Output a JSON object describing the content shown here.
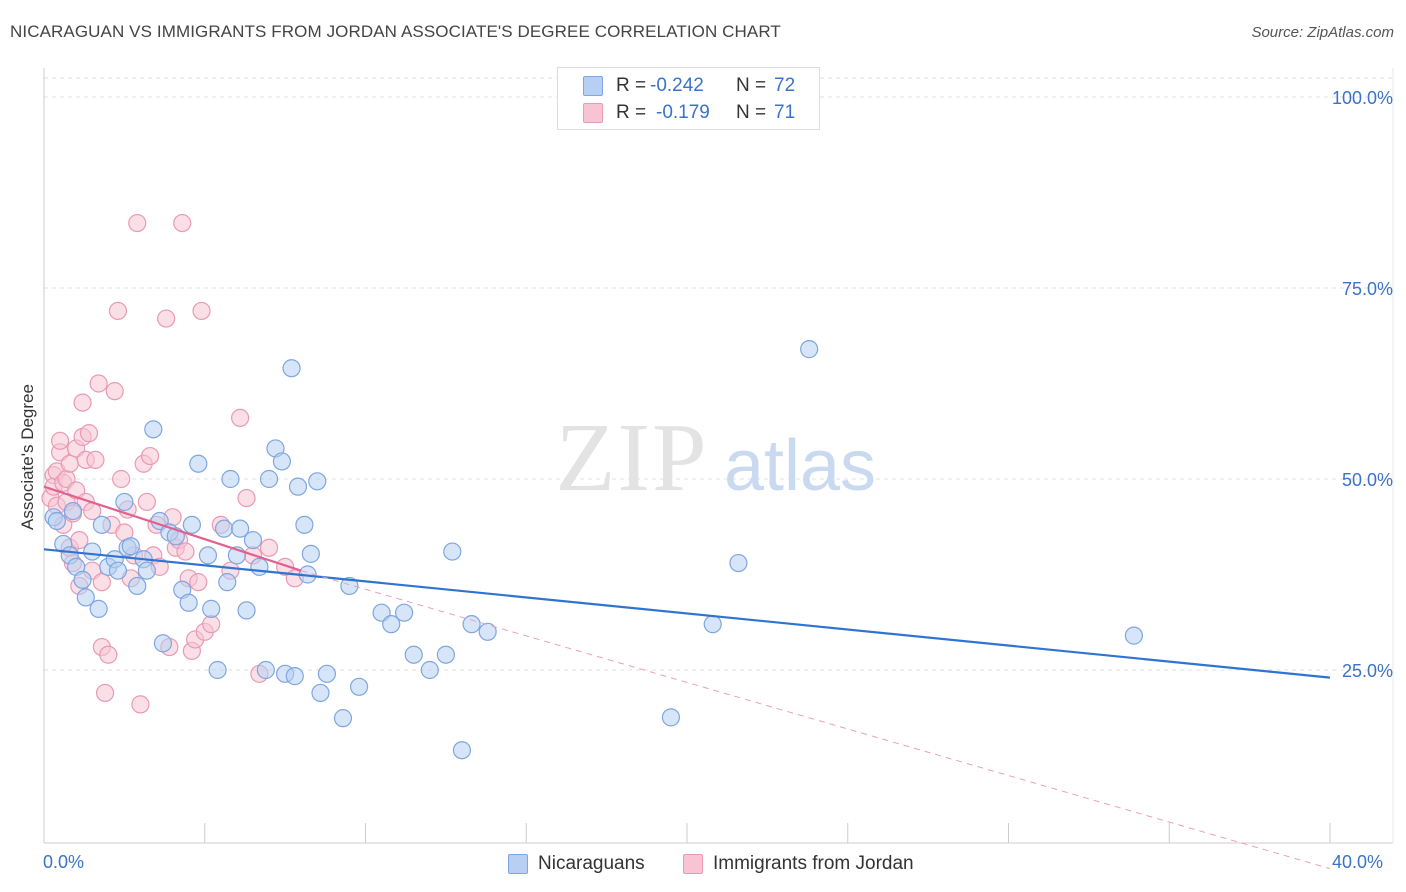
{
  "title": "NICARAGUAN VS IMMIGRANTS FROM JORDAN ASSOCIATE'S DEGREE CORRELATION CHART",
  "source": "Source: ZipAtlas.com",
  "watermark": {
    "zip": "ZIP",
    "atlas": "atlas"
  },
  "legend_top": {
    "rows": [
      {
        "r_label": "R =",
        "r_value": "-0.242",
        "n_label": "N =",
        "n_value": "72"
      },
      {
        "r_label": "R =",
        "r_value": "-0.179",
        "n_label": "N =",
        "n_value": "71"
      }
    ]
  },
  "legend_bottom": {
    "series1": "Nicaraguans",
    "series2": "Immigrants from Jordan"
  },
  "axis": {
    "ylabel": "Associate's Degree",
    "x_min_label": "0.0%",
    "x_max_label": "40.0%"
  },
  "chart_data": {
    "type": "scatter",
    "title": "NICARAGUAN VS IMMIGRANTS FROM JORDAN ASSOCIATE'S DEGREE CORRELATION CHART",
    "xlabel": "",
    "ylabel": "Associate's Degree",
    "xlim": [
      0,
      40
    ],
    "ylim": [
      0,
      102
    ],
    "y_ticks": [
      25,
      50,
      75,
      100
    ],
    "y_tick_labels": [
      "25.0%",
      "50.0%",
      "75.0%",
      "100.0%"
    ],
    "x_tick_labels": [
      "0.0%",
      "40.0%"
    ],
    "grid": true,
    "colors": {
      "series1": "#2f74d0",
      "series1_fill": "#b6cff3",
      "series2": "#e0608f",
      "series2_fill": "#f8c4d4",
      "tick_text": "#3b73c8"
    },
    "series": [
      {
        "name": "Nicaraguans",
        "R": -0.242,
        "N": 72,
        "trend": {
          "x": [
            0,
            40
          ],
          "y": [
            40.8,
            24.0
          ],
          "style": "solid"
        },
        "points": [
          [
            0.3,
            45.0
          ],
          [
            0.4,
            44.5
          ],
          [
            0.6,
            41.5
          ],
          [
            0.8,
            40.0
          ],
          [
            0.9,
            45.8
          ],
          [
            1.0,
            38.5
          ],
          [
            1.2,
            36.8
          ],
          [
            1.3,
            34.5
          ],
          [
            1.5,
            40.5
          ],
          [
            1.7,
            33.0
          ],
          [
            1.8,
            44.0
          ],
          [
            2.0,
            38.5
          ],
          [
            2.2,
            39.5
          ],
          [
            2.3,
            38.0
          ],
          [
            2.5,
            47.0
          ],
          [
            2.6,
            41.0
          ],
          [
            2.7,
            41.2
          ],
          [
            2.9,
            36.0
          ],
          [
            3.1,
            39.5
          ],
          [
            3.2,
            38.0
          ],
          [
            3.4,
            56.5
          ],
          [
            3.6,
            44.5
          ],
          [
            3.7,
            28.5
          ],
          [
            3.9,
            43.0
          ],
          [
            4.1,
            42.5
          ],
          [
            4.3,
            35.5
          ],
          [
            4.5,
            33.8
          ],
          [
            4.6,
            44.0
          ],
          [
            4.8,
            52.0
          ],
          [
            5.1,
            40.0
          ],
          [
            5.2,
            33.0
          ],
          [
            5.4,
            25.0
          ],
          [
            5.6,
            43.5
          ],
          [
            5.7,
            36.5
          ],
          [
            5.8,
            50.0
          ],
          [
            6.0,
            40.0
          ],
          [
            6.1,
            43.5
          ],
          [
            6.3,
            32.8
          ],
          [
            6.5,
            42.0
          ],
          [
            6.7,
            38.5
          ],
          [
            6.9,
            25.0
          ],
          [
            7.0,
            50.0
          ],
          [
            7.2,
            54.0
          ],
          [
            7.4,
            52.3
          ],
          [
            7.5,
            24.5
          ],
          [
            7.7,
            64.5
          ],
          [
            7.8,
            24.2
          ],
          [
            7.9,
            49.0
          ],
          [
            8.1,
            44.0
          ],
          [
            8.2,
            37.5
          ],
          [
            8.3,
            40.2
          ],
          [
            8.5,
            49.7
          ],
          [
            8.6,
            22.0
          ],
          [
            8.8,
            24.5
          ],
          [
            9.3,
            18.7
          ],
          [
            9.5,
            36.0
          ],
          [
            9.8,
            22.8
          ],
          [
            10.5,
            32.5
          ],
          [
            10.8,
            31.0
          ],
          [
            11.2,
            32.5
          ],
          [
            11.5,
            27.0
          ],
          [
            12.0,
            25.0
          ],
          [
            12.5,
            27.0
          ],
          [
            12.7,
            40.5
          ],
          [
            13.0,
            14.5
          ],
          [
            13.3,
            31.0
          ],
          [
            13.8,
            30.0
          ],
          [
            19.5,
            18.8
          ],
          [
            20.8,
            31.0
          ],
          [
            21.6,
            39.0
          ],
          [
            23.8,
            67.0
          ],
          [
            33.9,
            29.5
          ]
        ]
      },
      {
        "name": "Immigrants from Jordan",
        "R": -0.179,
        "N": 71,
        "trend": {
          "x": [
            0,
            8.0
          ],
          "y": [
            49.0,
            38.0
          ],
          "style": "solid"
        },
        "trend_extension": {
          "x": [
            8.0,
            40
          ],
          "y": [
            38.0,
            -1.0
          ],
          "style": "dashed"
        },
        "points": [
          [
            0.2,
            47.5
          ],
          [
            0.3,
            50.5
          ],
          [
            0.3,
            49.0
          ],
          [
            0.4,
            46.5
          ],
          [
            0.4,
            51.0
          ],
          [
            0.5,
            53.5
          ],
          [
            0.5,
            55.0
          ],
          [
            0.6,
            49.5
          ],
          [
            0.6,
            44.0
          ],
          [
            0.7,
            47.0
          ],
          [
            0.7,
            50.0
          ],
          [
            0.8,
            52.0
          ],
          [
            0.8,
            41.0
          ],
          [
            0.9,
            45.5
          ],
          [
            0.9,
            39.0
          ],
          [
            1.0,
            54.0
          ],
          [
            1.0,
            48.5
          ],
          [
            1.1,
            36.0
          ],
          [
            1.1,
            42.0
          ],
          [
            1.2,
            55.5
          ],
          [
            1.2,
            60.0
          ],
          [
            1.3,
            52.5
          ],
          [
            1.3,
            47.0
          ],
          [
            1.4,
            56.0
          ],
          [
            1.5,
            45.8
          ],
          [
            1.5,
            38.0
          ],
          [
            1.6,
            52.5
          ],
          [
            1.7,
            62.5
          ],
          [
            1.8,
            36.5
          ],
          [
            1.8,
            28.0
          ],
          [
            1.9,
            22.0
          ],
          [
            2.0,
            27.0
          ],
          [
            2.1,
            44.0
          ],
          [
            2.2,
            61.5
          ],
          [
            2.3,
            72.0
          ],
          [
            2.4,
            50.0
          ],
          [
            2.5,
            43.0
          ],
          [
            2.6,
            46.0
          ],
          [
            2.7,
            37.0
          ],
          [
            2.8,
            40.0
          ],
          [
            2.9,
            83.5
          ],
          [
            3.0,
            20.5
          ],
          [
            3.1,
            52.0
          ],
          [
            3.2,
            47.0
          ],
          [
            3.3,
            53.0
          ],
          [
            3.4,
            40.0
          ],
          [
            3.5,
            44.0
          ],
          [
            3.6,
            38.5
          ],
          [
            3.8,
            71.0
          ],
          [
            3.9,
            28.0
          ],
          [
            4.0,
            45.0
          ],
          [
            4.1,
            41.0
          ],
          [
            4.2,
            42.0
          ],
          [
            4.3,
            83.5
          ],
          [
            4.4,
            40.5
          ],
          [
            4.5,
            37.0
          ],
          [
            4.6,
            27.5
          ],
          [
            4.7,
            29.0
          ],
          [
            4.8,
            36.5
          ],
          [
            4.9,
            72.0
          ],
          [
            5.0,
            30.0
          ],
          [
            5.2,
            31.0
          ],
          [
            5.5,
            44.0
          ],
          [
            5.8,
            38.0
          ],
          [
            6.1,
            58.0
          ],
          [
            6.3,
            47.5
          ],
          [
            6.5,
            40.0
          ],
          [
            6.7,
            24.5
          ],
          [
            7.0,
            41.0
          ],
          [
            7.5,
            38.5
          ],
          [
            7.8,
            37.0
          ]
        ]
      }
    ]
  }
}
